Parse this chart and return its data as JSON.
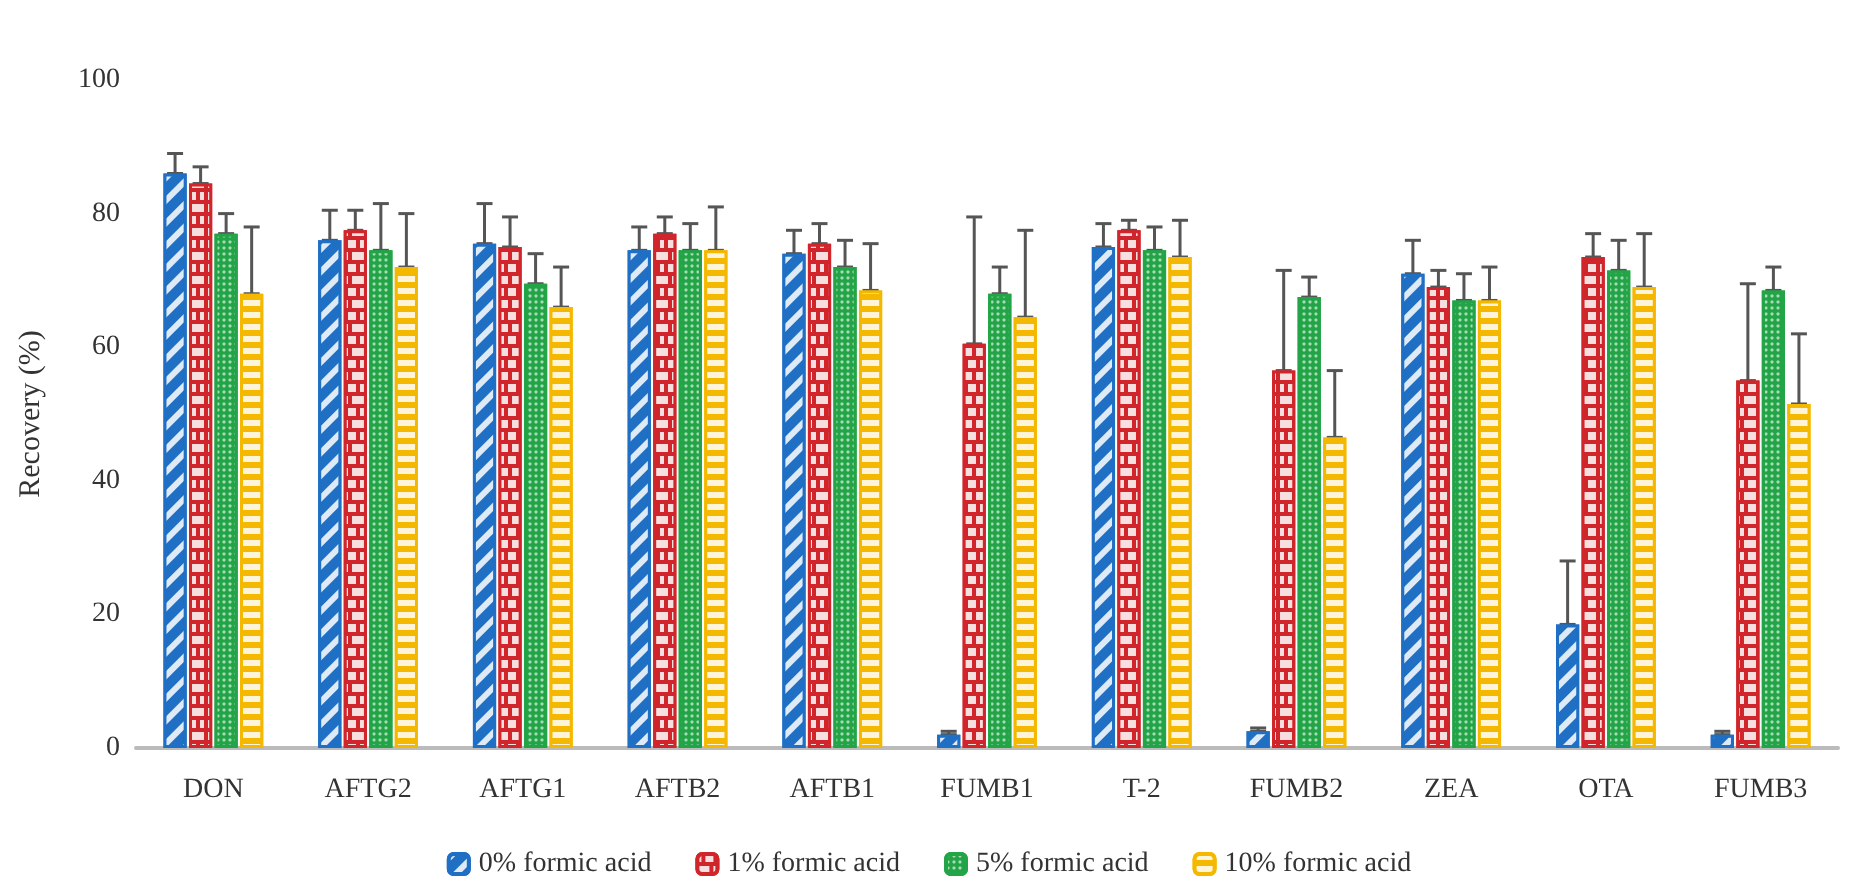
{
  "chart_data": {
    "type": "bar",
    "ylabel": "Recovery (%)",
    "categories": [
      "DON",
      "AFTG2",
      "AFTG1",
      "AFTB2",
      "AFTB1",
      "FUMB1",
      "T-2",
      "FUMB2",
      "ZEA",
      "OTA",
      "FUMB3"
    ],
    "ylim": [
      0,
      100
    ],
    "yticks": [
      0,
      20,
      40,
      60,
      80,
      100
    ],
    "grid": false,
    "legend": "bottom",
    "series": [
      {
        "name": "0% formic acid",
        "color": "#1f6fc4",
        "values": [
          86,
          76,
          75.5,
          74.5,
          74,
          2,
          75,
          2.5,
          71,
          18.5,
          2
        ],
        "errors": [
          [
            86,
            89
          ],
          [
            76,
            80.5
          ],
          [
            75.5,
            81.5
          ],
          [
            74.5,
            78
          ],
          [
            74,
            77.5
          ],
          [
            2,
            2.5
          ],
          [
            75,
            78.5
          ],
          [
            2.5,
            3
          ],
          [
            71,
            76
          ],
          [
            18.5,
            28
          ],
          [
            2,
            2.5
          ]
        ]
      },
      {
        "name": "1% formic acid",
        "color": "#d0262b",
        "values": [
          84.5,
          77.5,
          75,
          77,
          75.5,
          60.5,
          77.5,
          56.5,
          69,
          73.5,
          55
        ],
        "errors": [
          [
            84.5,
            87
          ],
          [
            77.5,
            80.5
          ],
          [
            75,
            79.5
          ],
          [
            77,
            79.5
          ],
          [
            75.5,
            78.5
          ],
          [
            60.5,
            79.5
          ],
          [
            77.5,
            79
          ],
          [
            56.5,
            71.5
          ],
          [
            69,
            71.5
          ],
          [
            73.5,
            77
          ],
          [
            55,
            69.5
          ]
        ]
      },
      {
        "name": "5% formic acid",
        "color": "#22a447",
        "values": [
          77,
          74.5,
          69.5,
          74.5,
          72,
          68,
          74.5,
          67.5,
          67,
          71.5,
          68.5
        ],
        "errors": [
          [
            77,
            80
          ],
          [
            74.5,
            81.5
          ],
          [
            69.5,
            74
          ],
          [
            74.5,
            78.5
          ],
          [
            72,
            76
          ],
          [
            68,
            72
          ],
          [
            74.5,
            78
          ],
          [
            67.5,
            70.5
          ],
          [
            67,
            71
          ],
          [
            71.5,
            76
          ],
          [
            68.5,
            72
          ]
        ]
      },
      {
        "name": "10% formic acid",
        "color": "#f5b800",
        "values": [
          68,
          72,
          66,
          74.5,
          68.5,
          64.5,
          73.5,
          46.5,
          67,
          69,
          51.5
        ],
        "errors": [
          [
            68,
            78
          ],
          [
            72,
            80
          ],
          [
            66,
            72
          ],
          [
            74.5,
            81
          ],
          [
            68.5,
            75.5
          ],
          [
            64.5,
            77.5
          ],
          [
            73.5,
            79
          ],
          [
            46.5,
            56.5
          ],
          [
            67,
            72
          ],
          [
            69,
            77
          ],
          [
            51.5,
            62
          ]
        ]
      }
    ]
  }
}
